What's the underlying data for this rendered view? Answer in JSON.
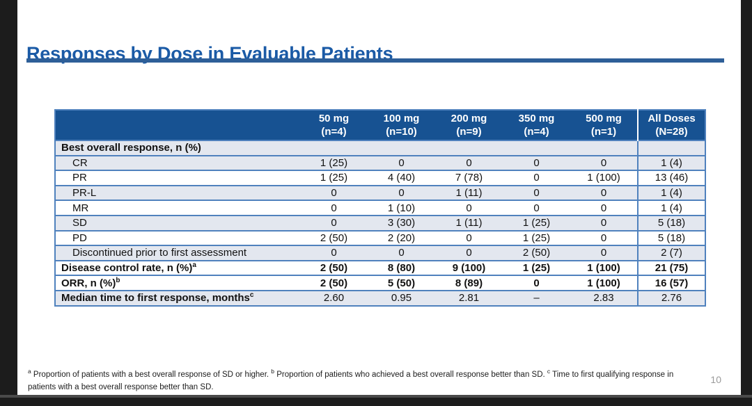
{
  "slide": {
    "title": "Responses by Dose in Evaluable Patients",
    "page_number": "10"
  },
  "colors": {
    "title_blue": "#1A5AA6",
    "title_rule": "#2E5F98",
    "header_bg": "#175292",
    "header_text": "#FFFFFF",
    "row_shaded": "#E3E7EF",
    "row_white": "#FFFFFF",
    "table_border": "#4F81BD",
    "page_number_gray": "#9A9A9A",
    "letterbox_black": "#1C1C1C"
  },
  "table": {
    "header": {
      "label_col": "",
      "cols": [
        {
          "dose": "50 mg",
          "n": "(n=4)"
        },
        {
          "dose": "100 mg",
          "n": "(n=10)"
        },
        {
          "dose": "200 mg",
          "n": "(n=9)"
        },
        {
          "dose": "350 mg",
          "n": "(n=4)"
        },
        {
          "dose": "500 mg",
          "n": "(n=1)"
        },
        {
          "dose": "All Doses",
          "n": "(N=28)"
        }
      ]
    },
    "rows": [
      {
        "label": "Best overall response, n (%)",
        "bold": true,
        "indent": false,
        "shaded": true,
        "bold_values": false,
        "values": [
          "",
          "",
          "",
          "",
          "",
          ""
        ]
      },
      {
        "label": "CR",
        "bold": false,
        "indent": true,
        "shaded": true,
        "bold_values": false,
        "values": [
          "1 (25)",
          "0",
          "0",
          "0",
          "0",
          "1 (4)"
        ]
      },
      {
        "label": "PR",
        "bold": false,
        "indent": true,
        "shaded": false,
        "bold_values": false,
        "values": [
          "1 (25)",
          "4 (40)",
          "7 (78)",
          "0",
          "1 (100)",
          "13 (46)"
        ]
      },
      {
        "label": "PR-L",
        "bold": false,
        "indent": true,
        "shaded": true,
        "bold_values": false,
        "values": [
          "0",
          "0",
          "1 (11)",
          "0",
          "0",
          "1 (4)"
        ]
      },
      {
        "label": "MR",
        "bold": false,
        "indent": true,
        "shaded": false,
        "bold_values": false,
        "values": [
          "0",
          "1 (10)",
          "0",
          "0",
          "0",
          "1 (4)"
        ]
      },
      {
        "label": "SD",
        "bold": false,
        "indent": true,
        "shaded": true,
        "bold_values": false,
        "values": [
          "0",
          "3 (30)",
          "1 (11)",
          "1 (25)",
          "0",
          "5 (18)"
        ]
      },
      {
        "label": "PD",
        "bold": false,
        "indent": true,
        "shaded": false,
        "bold_values": false,
        "values": [
          "2 (50)",
          "2 (20)",
          "0",
          "1 (25)",
          "0",
          "5 (18)"
        ]
      },
      {
        "label": "Discontinued prior to first assessment",
        "bold": false,
        "indent": true,
        "shaded": true,
        "bold_values": false,
        "values": [
          "0",
          "0",
          "0",
          "2 (50)",
          "0",
          "2 (7)"
        ]
      },
      {
        "label": "Disease control rate, n (%)",
        "sup": "a",
        "bold": true,
        "indent": false,
        "shaded": false,
        "bold_values": true,
        "values": [
          "2 (50)",
          "8 (80)",
          "9 (100)",
          "1 (25)",
          "1 (100)",
          "21 (75)"
        ]
      },
      {
        "label": "ORR, n (%)",
        "sup": "b",
        "bold": true,
        "indent": false,
        "shaded": false,
        "bold_values": true,
        "values": [
          "2 (50)",
          "5 (50)",
          "8 (89)",
          "0",
          "1 (100)",
          "16 (57)"
        ]
      },
      {
        "label": "Median time to first response, months",
        "sup": "c",
        "bold": true,
        "indent": false,
        "shaded": true,
        "bold_values": false,
        "values": [
          "2.60",
          "0.95",
          "2.81",
          "–",
          "2.83",
          "2.76"
        ]
      }
    ]
  },
  "footnotes": [
    {
      "marker": "a",
      "text": " Proportion of patients with a best overall response of SD or higher. "
    },
    {
      "marker": "b",
      "text": " Proportion of patients who achieved a best overall response better than SD. "
    },
    {
      "marker": "c",
      "text": " Time to first qualifying response in patients with a best overall response better than SD."
    }
  ]
}
